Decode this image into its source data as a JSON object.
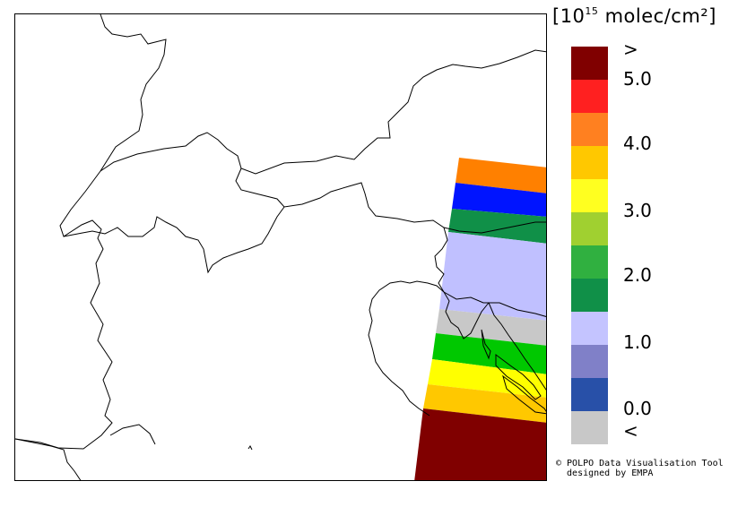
{
  "legend": {
    "title_open": "[10",
    "title_exp": "15",
    "title_rest": " molec/cm²]",
    "colors": [
      "#800000",
      "#ff2020",
      "#ff8020",
      "#ffc800",
      "#ffff20",
      "#a0d030",
      "#30b040",
      "#109048",
      "#c4c4ff",
      "#8080c8",
      "#2850a8",
      "#c8c8c8"
    ],
    "ticks": [
      ">",
      "5.0",
      "4.0",
      "3.0",
      "2.0",
      "1.0",
      "0.0",
      "<"
    ]
  },
  "swath_bands": [
    "#ff8000",
    "#0014ff",
    "#109048",
    "#c0c0ff",
    "#c8c8c8",
    "#00c800",
    "#ffff00",
    "#ffc800",
    "#800000"
  ],
  "credit": {
    "line1": "© POLPO Data Visualisation Tool",
    "line2": "  designed by EMPA"
  }
}
